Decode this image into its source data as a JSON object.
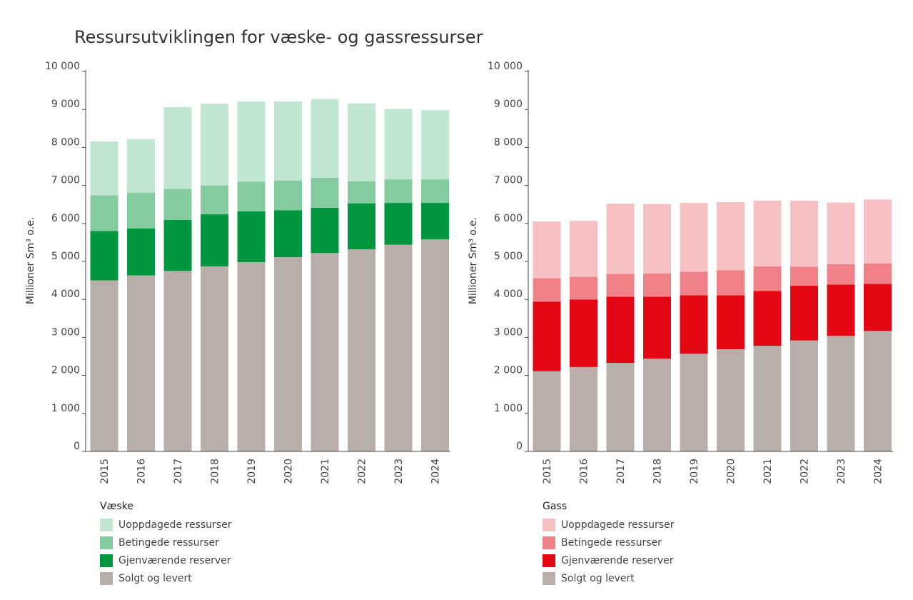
{
  "title": "Ressursutviklingen for væske- og gassressurser",
  "chart_data": [
    {
      "type": "bar",
      "stacked": true,
      "categories": [
        "2015",
        "2016",
        "2017",
        "2018",
        "2019",
        "2020",
        "2021",
        "2022",
        "2023",
        "2024"
      ],
      "ylabel": "Millioner Sm³ o.e.",
      "ylim": [
        0,
        10000
      ],
      "yticks": [
        0,
        1000,
        2000,
        3000,
        4000,
        5000,
        6000,
        7000,
        8000,
        9000,
        10000
      ],
      "ytick_labels": [
        "0",
        "1 000",
        "2 000",
        "3 000",
        "4 000",
        "5 000",
        "6 000",
        "7 000",
        "8 000",
        "9 000",
        "10 000"
      ],
      "grid": false,
      "legend_title": "Væske",
      "legend_placement": "bottom",
      "series": [
        {
          "name": "Solgt og levert",
          "color": "#b8afab",
          "values": [
            4500,
            4630,
            4750,
            4870,
            4980,
            5110,
            5220,
            5320,
            5440,
            5580
          ]
        },
        {
          "name": "Gjenværende reserver",
          "color": "#00963f",
          "values": [
            1300,
            1240,
            1340,
            1370,
            1340,
            1240,
            1190,
            1210,
            1100,
            960
          ]
        },
        {
          "name": "Betingede ressurser",
          "color": "#84cca0",
          "values": [
            940,
            940,
            820,
            760,
            780,
            780,
            790,
            580,
            620,
            620
          ]
        },
        {
          "name": "Uoppdagede ressurser",
          "color": "#c1e6d2",
          "values": [
            1420,
            1410,
            2150,
            2150,
            2110,
            2080,
            2070,
            2050,
            1850,
            1820
          ]
        }
      ]
    },
    {
      "type": "bar",
      "stacked": true,
      "categories": [
        "2015",
        "2016",
        "2017",
        "2018",
        "2019",
        "2020",
        "2021",
        "2022",
        "2023",
        "2024"
      ],
      "ylabel": "Millioner Sm³ o.e.",
      "ylim": [
        0,
        10000
      ],
      "yticks": [
        0,
        1000,
        2000,
        3000,
        4000,
        5000,
        6000,
        7000,
        8000,
        9000,
        10000
      ],
      "ytick_labels": [
        "0",
        "1 000",
        "2 000",
        "3 000",
        "4 000",
        "5 000",
        "6 000",
        "7 000",
        "8 000",
        "9 000",
        "10 000"
      ],
      "grid": false,
      "legend_title": "Gass",
      "legend_placement": "bottom",
      "series": [
        {
          "name": "Solgt og levert",
          "color": "#b8afab",
          "values": [
            2110,
            2220,
            2330,
            2440,
            2570,
            2690,
            2780,
            2920,
            3040,
            3170
          ]
        },
        {
          "name": "Gjenværende reserver",
          "color": "#e30613",
          "values": [
            1830,
            1780,
            1740,
            1630,
            1540,
            1420,
            1440,
            1440,
            1350,
            1240
          ]
        },
        {
          "name": "Betingede ressurser",
          "color": "#f08189",
          "values": [
            620,
            600,
            600,
            610,
            620,
            660,
            650,
            500,
            540,
            540
          ]
        },
        {
          "name": "Uoppdagede ressurser",
          "color": "#f7c1c4",
          "values": [
            1490,
            1470,
            1850,
            1830,
            1810,
            1790,
            1730,
            1740,
            1620,
            1680
          ]
        }
      ]
    }
  ]
}
